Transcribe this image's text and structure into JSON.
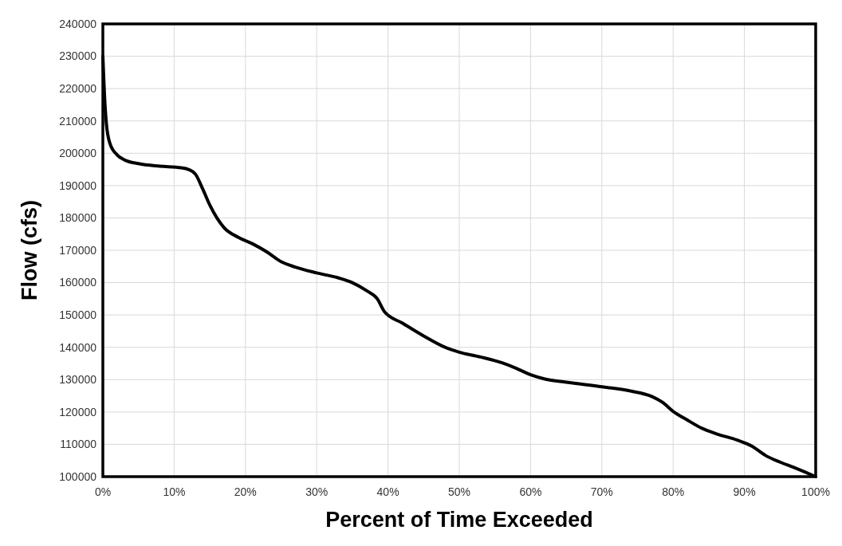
{
  "chart_data": {
    "type": "line",
    "xlabel": "Percent of Time Exceeded",
    "ylabel": "Flow (cfs)",
    "xlim": [
      0,
      100
    ],
    "xticks": [
      {
        "value": 0,
        "label": "0%"
      },
      {
        "value": 10,
        "label": "10%"
      },
      {
        "value": 20,
        "label": "20%"
      },
      {
        "value": 30,
        "label": "30%"
      },
      {
        "value": 40,
        "label": "40%"
      },
      {
        "value": 50,
        "label": "50%"
      },
      {
        "value": 60,
        "label": "60%"
      },
      {
        "value": 70,
        "label": "70%"
      },
      {
        "value": 80,
        "label": "80%"
      },
      {
        "value": 90,
        "label": "90%"
      },
      {
        "value": 100,
        "label": "100%"
      }
    ],
    "ylim": [
      100000,
      240000
    ],
    "yticks": [
      100000,
      110000,
      120000,
      130000,
      140000,
      150000,
      160000,
      170000,
      180000,
      190000,
      200000,
      210000,
      220000,
      230000,
      240000
    ],
    "grid": true,
    "marker": "none",
    "line_style": "solid",
    "series": [
      {
        "color": "#000000",
        "x": [
          0,
          0.3,
          0.5,
          1,
          2,
          3,
          5,
          8,
          11,
          12,
          13,
          14,
          15,
          16,
          17,
          19,
          21,
          23,
          25,
          27,
          30,
          33,
          35,
          37,
          38.5,
          39.5,
          42,
          45,
          48,
          50,
          53,
          56,
          58,
          60,
          62,
          65,
          70,
          74,
          77,
          78.5,
          80,
          82,
          84,
          86,
          89,
          91,
          93,
          95,
          97,
          100
        ],
        "values": [
          230000,
          215000,
          209000,
          203000,
          199500,
          198000,
          196800,
          196000,
          195500,
          195000,
          193500,
          189000,
          184000,
          180000,
          177000,
          174000,
          172000,
          169500,
          166500,
          164800,
          163000,
          161500,
          160000,
          157500,
          155000,
          151000,
          147500,
          143500,
          140000,
          138500,
          137000,
          135200,
          133500,
          131500,
          130200,
          129200,
          127800,
          126500,
          124800,
          123000,
          120200,
          117500,
          115000,
          113300,
          111300,
          109500,
          106500,
          104500,
          102800,
          100000
        ]
      }
    ]
  }
}
